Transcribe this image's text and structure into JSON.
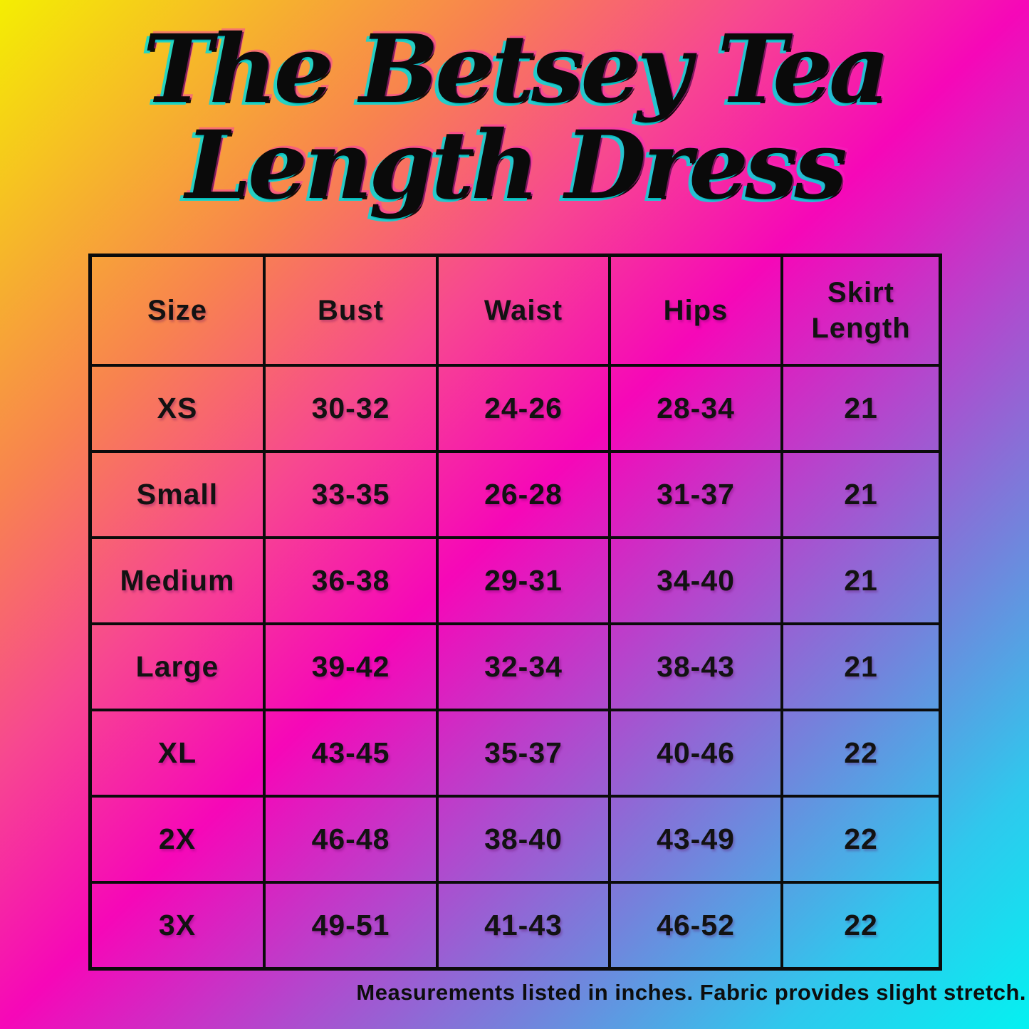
{
  "title": {
    "line1": "The Betsey Tea",
    "line2": "Length Dress"
  },
  "colors": {
    "gradient_stops": [
      "#f4ee02",
      "#f8834f",
      "#f74890",
      "#f607b8",
      "#b347cd",
      "#7482dc",
      "#2fc8ed",
      "#04f1f1"
    ],
    "table_border": "#0b0b0b",
    "text": "#121212",
    "title_fill": "#0a0a0a",
    "title_ghost_cyan": "#00dada",
    "title_ghost_magenta": "#f327bc"
  },
  "chart_data": {
    "type": "table",
    "title": "The Betsey Tea Length Dress",
    "columns": [
      "Size",
      "Bust",
      "Waist",
      "Hips",
      "Skirt Length"
    ],
    "rows": [
      [
        "XS",
        "30-32",
        "24-26",
        "28-34",
        "21"
      ],
      [
        "Small",
        "33-35",
        "26-28",
        "31-37",
        "21"
      ],
      [
        "Medium",
        "36-38",
        "29-31",
        "34-40",
        "21"
      ],
      [
        "Large",
        "39-42",
        "32-34",
        "38-43",
        "21"
      ],
      [
        "XL",
        "43-45",
        "35-37",
        "40-46",
        "22"
      ],
      [
        "2X",
        "46-48",
        "38-40",
        "43-49",
        "22"
      ],
      [
        "3X",
        "49-51",
        "41-43",
        "46-52",
        "22"
      ]
    ],
    "note": "Measurements listed in inches. Fabric provides slight stretch.",
    "units": "inches"
  }
}
